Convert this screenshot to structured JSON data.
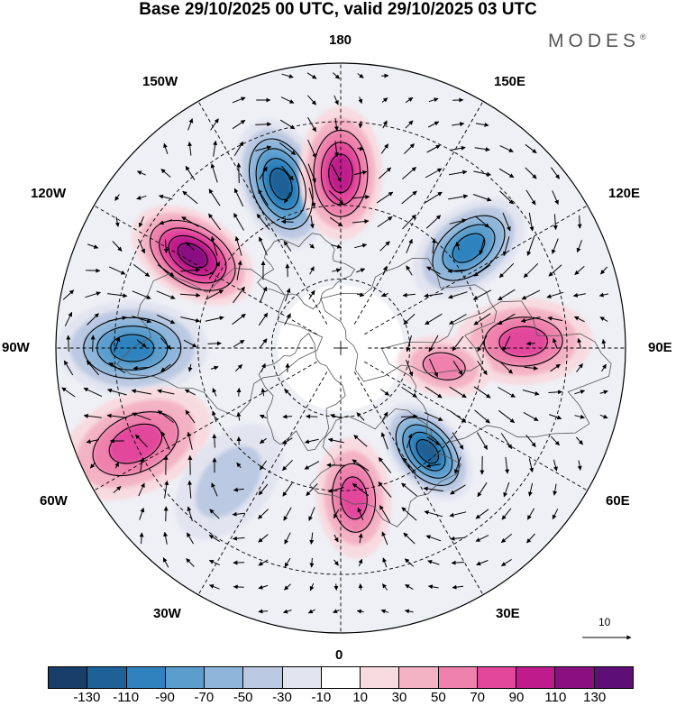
{
  "title": "Base 29/10/2025 00 UTC, valid 29/10/2025 03 UTC",
  "brand": {
    "name": "MODES",
    "mark": "®"
  },
  "longitude_labels": {
    "top": "180",
    "top_left": "150W",
    "top_right": "150E",
    "upper_left": "120W",
    "upper_right": "120E",
    "left": "90W",
    "right": "90E",
    "lower_left": "60W",
    "lower_right": "60E",
    "bottom_left": "30W",
    "bottom_right": "30E",
    "bottom": "0"
  },
  "vector_scale": {
    "value": "10"
  },
  "colorbar": {
    "labels": [
      "-130",
      "-110",
      "-90",
      "-70",
      "-50",
      "-30",
      "-10",
      "10",
      "30",
      "50",
      "70",
      "90",
      "110",
      "130"
    ],
    "colors": [
      "#183e6a",
      "#1d6197",
      "#2f82bd",
      "#5b9ecd",
      "#8fb6da",
      "#bcc9e2",
      "#e2e4f0",
      "#ffffff",
      "#f8dbe0",
      "#f4b3c5",
      "#ee82ad",
      "#e2479b",
      "#bf1b8c",
      "#8a1082",
      "#5e0f76"
    ]
  },
  "anomaly_centers": [
    {
      "name": "low-150W",
      "sign": "negative",
      "lon": -160,
      "colat": 48,
      "strength": 120
    },
    {
      "name": "high-180",
      "sign": "positive",
      "lon": 180,
      "colat": 48,
      "strength": 95
    },
    {
      "name": "high-120W",
      "sign": "positive",
      "lon": -122,
      "colat": 48,
      "strength": 125
    },
    {
      "name": "low-90W",
      "sign": "negative",
      "lon": -90,
      "colat": 56,
      "strength": 95
    },
    {
      "name": "low-120E",
      "sign": "negative",
      "lon": 128,
      "colat": 45,
      "strength": 105
    },
    {
      "name": "high-90E",
      "sign": "positive",
      "lon": 92,
      "colat": 50,
      "strength": 85
    },
    {
      "name": "high-90E-inner",
      "sign": "positive",
      "lon": 80,
      "colat": 30,
      "strength": 65
    },
    {
      "name": "low-45E",
      "sign": "negative",
      "lon": 40,
      "colat": 38,
      "strength": 115
    },
    {
      "name": "high-0",
      "sign": "positive",
      "lon": 5,
      "colat": 42,
      "strength": 85
    },
    {
      "name": "high-60W",
      "sign": "positive",
      "lon": -65,
      "colat": 60,
      "strength": 75
    },
    {
      "name": "low-40W",
      "sign": "negative",
      "lon": -40,
      "colat": 48,
      "strength": 45
    }
  ]
}
